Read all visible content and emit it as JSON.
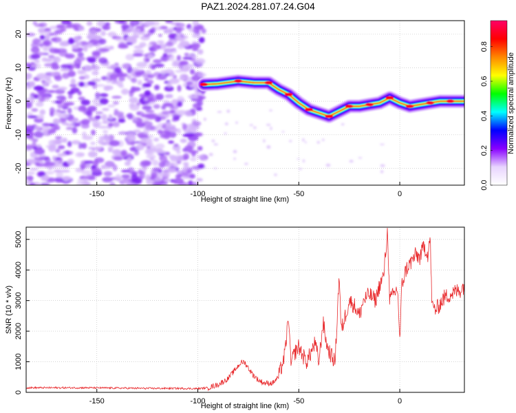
{
  "title": "PAZ1.2024.281.07.24.G04",
  "chart_data": [
    {
      "type": "heatmap",
      "title": "",
      "xlabel": "Height of straight line (km)",
      "ylabel": "Frequency (Hz)",
      "xlim": [
        -185,
        32
      ],
      "ylim": [
        -25,
        24
      ],
      "xticks": [
        -150,
        -100,
        -50,
        0
      ],
      "yticks": [
        -20,
        -10,
        0,
        10,
        20
      ],
      "grid": true,
      "colorbar": {
        "label": "Normalized spectral amplitude",
        "range": [
          0.0,
          0.95
        ],
        "ticks": [
          0.0,
          0.2,
          0.4,
          0.6,
          0.8
        ],
        "colors": [
          "#ffffff",
          "#e8d4ff",
          "#8800ff",
          "#0000ff",
          "#00ffff",
          "#00ff00",
          "#ffff00",
          "#ff8800",
          "#ff0000",
          "#ff0066"
        ]
      },
      "noise_region": {
        "x_range": [
          -185,
          -97
        ],
        "y_range": [
          -25,
          24
        ],
        "amplitude": 0.15
      },
      "signal_ridge": [
        {
          "x": -97,
          "y": 5
        },
        {
          "x": -90,
          "y": 5.2
        },
        {
          "x": -80,
          "y": 6
        },
        {
          "x": -72,
          "y": 5.5
        },
        {
          "x": -65,
          "y": 5.5
        },
        {
          "x": -60,
          "y": 3.5
        },
        {
          "x": -55,
          "y": 2
        },
        {
          "x": -50,
          "y": -0.5
        },
        {
          "x": -45,
          "y": -2.5
        },
        {
          "x": -40,
          "y": -3.5
        },
        {
          "x": -35,
          "y": -4.5
        },
        {
          "x": -30,
          "y": -3
        },
        {
          "x": -25,
          "y": -1.5
        },
        {
          "x": -20,
          "y": -1.5
        },
        {
          "x": -15,
          "y": -1
        },
        {
          "x": -10,
          "y": -0.5
        },
        {
          "x": -5,
          "y": 1
        },
        {
          "x": 0,
          "y": -0.5
        },
        {
          "x": 5,
          "y": -1.5
        },
        {
          "x": 10,
          "y": -1
        },
        {
          "x": 15,
          "y": -0.5
        },
        {
          "x": 20,
          "y": 0
        },
        {
          "x": 25,
          "y": 0
        },
        {
          "x": 32,
          "y": 0
        }
      ]
    },
    {
      "type": "line",
      "title": "",
      "xlabel": "Height of straight line (km)",
      "ylabel": "SNR (10 * v/v)",
      "xlim": [
        -185,
        32
      ],
      "ylim": [
        0,
        5400
      ],
      "xticks": [
        -150,
        -100,
        -50,
        0
      ],
      "yticks": [
        0,
        1000,
        2000,
        3000,
        4000,
        5000
      ],
      "grid": true,
      "line_color": "#e8282b",
      "series": [
        {
          "x": [
            -185,
            -170,
            -155,
            -140,
            -125,
            -110,
            -100,
            -95,
            -90,
            -85,
            -82,
            -79,
            -77,
            -75,
            -73,
            -70,
            -67,
            -63,
            -60,
            -57,
            -55,
            -54,
            -52,
            -50,
            -48,
            -46,
            -44,
            -42,
            -40,
            -38,
            -36,
            -34,
            -32,
            -30,
            -29,
            -27,
            -25,
            -22,
            -20,
            -18,
            -15,
            -12,
            -10,
            -8,
            -6,
            -5,
            -3,
            -1,
            0,
            1,
            3,
            5,
            8,
            10,
            12,
            14,
            15,
            16,
            18,
            20,
            22,
            25,
            28,
            30,
            32
          ],
          "y": [
            150,
            150,
            150,
            140,
            130,
            130,
            120,
            150,
            250,
            450,
            700,
            950,
            1000,
            800,
            600,
            400,
            300,
            300,
            500,
            1200,
            2500,
            900,
            1300,
            1500,
            1200,
            1000,
            1300,
            1600,
            1000,
            2300,
            1500,
            1200,
            1000,
            3900,
            2000,
            2500,
            3000,
            2800,
            2500,
            3000,
            3200,
            3000,
            3500,
            3800,
            5300,
            3000,
            3200,
            3400,
            1600,
            3500,
            4000,
            4200,
            4500,
            4400,
            4800,
            4500,
            5100,
            2800,
            2700,
            2900,
            3100,
            3200,
            3300,
            3350,
            3500
          ]
        }
      ]
    }
  ]
}
